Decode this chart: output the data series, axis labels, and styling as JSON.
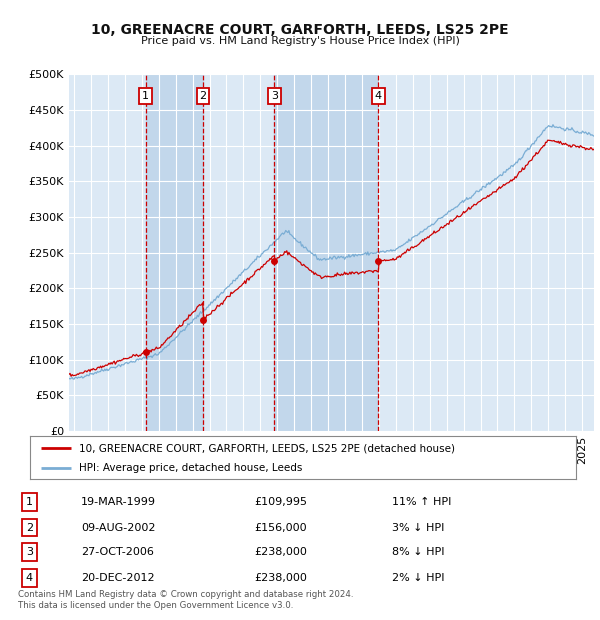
{
  "title": "10, GREENACRE COURT, GARFORTH, LEEDS, LS25 2PE",
  "subtitle": "Price paid vs. HM Land Registry's House Price Index (HPI)",
  "legend_line1": "10, GREENACRE COURT, GARFORTH, LEEDS, LS25 2PE (detached house)",
  "legend_line2": "HPI: Average price, detached house, Leeds",
  "footer1": "Contains HM Land Registry data © Crown copyright and database right 2024.",
  "footer2": "This data is licensed under the Open Government Licence v3.0.",
  "sales": [
    {
      "num": 1,
      "date": "19-MAR-1999",
      "price": 109995,
      "pct": "11%",
      "dir": "↑"
    },
    {
      "num": 2,
      "date": "09-AUG-2002",
      "price": 156000,
      "pct": "3%",
      "dir": "↓"
    },
    {
      "num": 3,
      "date": "27-OCT-2006",
      "price": 238000,
      "pct": "8%",
      "dir": "↓"
    },
    {
      "num": 4,
      "date": "20-DEC-2012",
      "price": 238000,
      "pct": "2%",
      "dir": "↓"
    }
  ],
  "sale_dates_decimal": [
    1999.22,
    2002.61,
    2006.82,
    2012.97
  ],
  "ylim": [
    0,
    500000
  ],
  "yticks": [
    0,
    50000,
    100000,
    150000,
    200000,
    250000,
    300000,
    350000,
    400000,
    450000,
    500000
  ],
  "background_color": "#ffffff",
  "plot_bg_color": "#dce9f5",
  "grid_color": "#ffffff",
  "red_line_color": "#cc0000",
  "blue_line_color": "#7aadd4",
  "shade_color": "#b8d0e8",
  "vline_color": "#cc0000",
  "box_color": "#cc0000",
  "xlim_left": 1994.7,
  "xlim_right": 2025.7
}
